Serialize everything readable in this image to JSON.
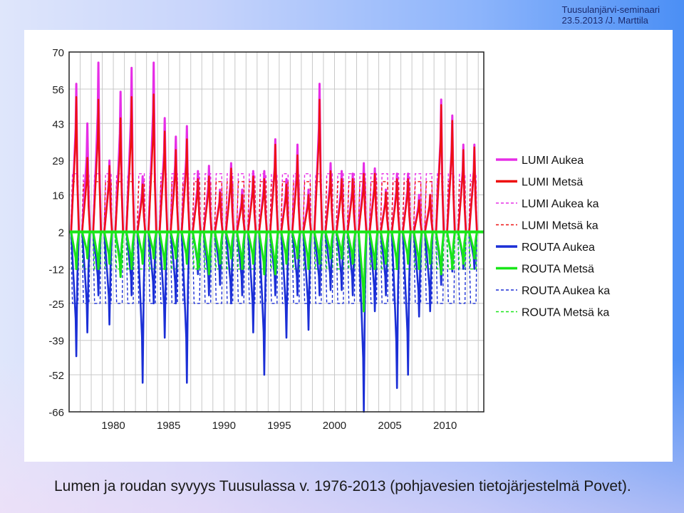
{
  "header": {
    "seminar": "Tuusulanjärvi-seminaari",
    "date_author": "23.5.2013 /J. Marttila"
  },
  "caption": "Lumen ja roudan syvyys Tuusulassa v. 1976-2013 (pohjavesien tietojärjestelmä Povet).",
  "chart_data": {
    "type": "line",
    "title": "",
    "xlabel": "",
    "ylabel": "",
    "xlim": [
      1976,
      2013.5
    ],
    "ylim": [
      -66,
      70
    ],
    "y_ticks": [
      70,
      56,
      43,
      29,
      16,
      2,
      -12,
      -25,
      -39,
      -52,
      -66
    ],
    "x_ticks": [
      1980,
      1985,
      1990,
      1995,
      2000,
      2005,
      2010
    ],
    "grid": true,
    "legend_position": "right",
    "legend": [
      {
        "label": "LUMI Aukea",
        "color": "#e62ee6",
        "style": "solid"
      },
      {
        "label": "LUMI Metsä",
        "color": "#ee1111",
        "style": "solid"
      },
      {
        "label": "LUMI Aukea ka",
        "color": "#e62ee6",
        "style": "dashed"
      },
      {
        "label": "LUMI Metsä ka",
        "color": "#ee1111",
        "style": "dashed"
      },
      {
        "label": "ROUTA Aukea",
        "color": "#1b2fd6",
        "style": "solid"
      },
      {
        "label": "ROUTA Metsä",
        "color": "#19e619",
        "style": "solid"
      },
      {
        "label": "ROUTA Aukea ka",
        "color": "#1b2fd6",
        "style": "dashed"
      },
      {
        "label": "ROUTA Metsä ka",
        "color": "#19e619",
        "style": "dashed"
      }
    ],
    "winters": [
      1977,
      1978,
      1979,
      1980,
      1981,
      1982,
      1983,
      1984,
      1985,
      1986,
      1987,
      1988,
      1989,
      1990,
      1991,
      1992,
      1993,
      1994,
      1995,
      1996,
      1997,
      1998,
      1999,
      2000,
      2001,
      2002,
      2003,
      2004,
      2005,
      2006,
      2007,
      2008,
      2009,
      2010,
      2011,
      2012,
      2013
    ],
    "series": [
      {
        "name": "LUMI Aukea",
        "values": [
          58,
          43,
          66,
          29,
          55,
          64,
          23,
          66,
          45,
          38,
          42,
          25,
          27,
          18,
          28,
          18,
          25,
          25,
          37,
          22,
          35,
          18,
          58,
          28,
          25,
          24,
          28,
          26,
          18,
          24,
          24,
          16,
          16,
          52,
          46,
          35,
          35
        ]
      },
      {
        "name": "LUMI Metsä",
        "values": [
          53,
          30,
          52,
          27,
          45,
          53,
          20,
          54,
          40,
          33,
          37,
          22,
          23,
          17,
          26,
          16,
          23,
          22,
          35,
          20,
          31,
          16,
          52,
          25,
          22,
          22,
          24,
          24,
          17,
          22,
          22,
          14,
          16,
          50,
          44,
          33,
          34
        ]
      },
      {
        "name": "ROUTA Aukea",
        "values": [
          -45,
          -36,
          -22,
          -33,
          -12,
          -22,
          -55,
          -25,
          -38,
          -25,
          -55,
          -14,
          -22,
          -18,
          -25,
          -22,
          -36,
          -52,
          -22,
          -38,
          -22,
          -35,
          -22,
          -20,
          -20,
          -22,
          -66,
          -28,
          -22,
          -57,
          -52,
          -30,
          -28,
          -18,
          -13,
          -12,
          -12
        ]
      },
      {
        "name": "ROUTA Metsä",
        "values": [
          -12,
          -8,
          -12,
          -10,
          -15,
          -12,
          -10,
          -8,
          -12,
          -8,
          -10,
          -12,
          -14,
          -10,
          -8,
          -12,
          -10,
          -14,
          -14,
          -10,
          -8,
          -12,
          -10,
          -8,
          -8,
          -10,
          -28,
          -12,
          -10,
          -12,
          -10,
          -12,
          -10,
          -14,
          -12,
          -10,
          -8
        ]
      }
    ],
    "averages": {
      "LUMI Aukea ka": 24,
      "LUMI Metsä ka": 21,
      "ROUTA Aukea ka": -25,
      "ROUTA Metsä ka": -12
    }
  }
}
